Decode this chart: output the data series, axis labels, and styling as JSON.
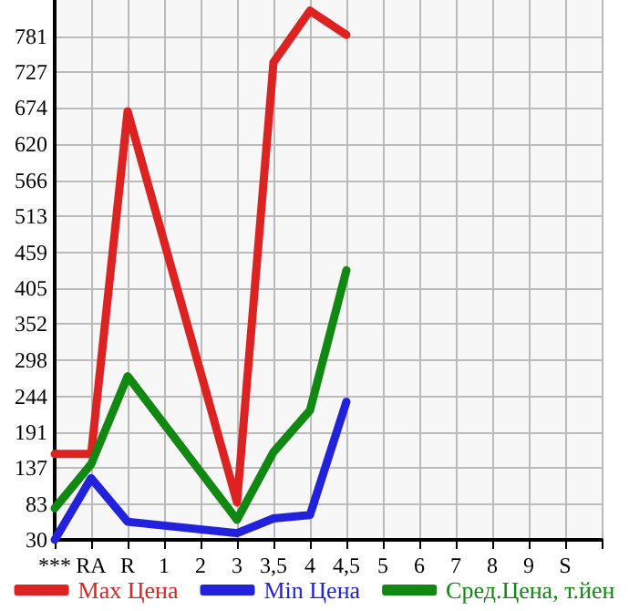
{
  "chart_data": {
    "type": "line",
    "categories": [
      "***",
      "RA",
      "R",
      "1",
      "2",
      "3",
      "3,5",
      "4",
      "4,5",
      "5",
      "6",
      "7",
      "8",
      "9",
      "S",
      null
    ],
    "series": [
      {
        "name": "Max Цена",
        "color": "#dd2222",
        "values": [
          158,
          158,
          669,
          null,
          null,
          86,
          742,
          819,
          783,
          null,
          null,
          null,
          null,
          null,
          null,
          null
        ]
      },
      {
        "name": "Min Цена",
        "color": "#2222dd",
        "values": [
          30,
          122,
          57,
          null,
          null,
          40,
          62,
          67,
          236,
          null,
          null,
          null,
          null,
          null,
          null,
          null
        ]
      },
      {
        "name": "Сред.Цена, т.йен",
        "color": "#118811",
        "values": [
          77,
          143,
          274,
          null,
          null,
          60,
          161,
          223,
          432,
          null,
          null,
          null,
          null,
          null,
          null,
          null
        ]
      }
    ],
    "ylim": [
      30,
      835
    ],
    "yticks": [
      30,
      83,
      137,
      191,
      244,
      298,
      352,
      405,
      459,
      513,
      566,
      620,
      674,
      727,
      781
    ],
    "grid": true,
    "legend": "bottom",
    "marker": "none",
    "line_style": "solid"
  }
}
